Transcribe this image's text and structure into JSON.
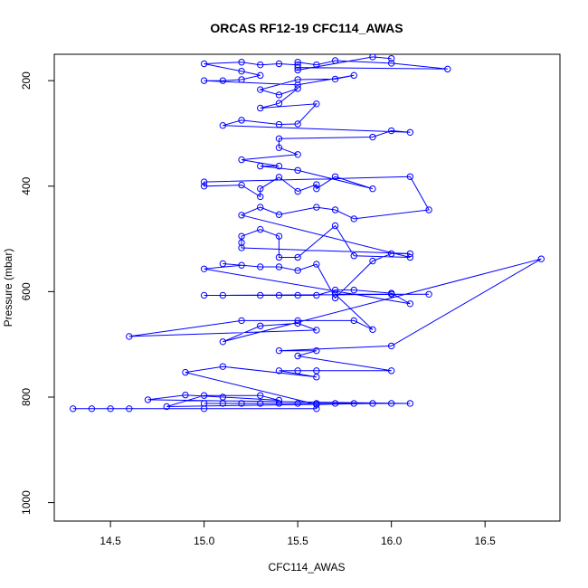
{
  "chart_data": {
    "type": "scatter",
    "title": "ORCAS RF12-19 CFC114_AWAS",
    "xlabel": "CFC114_AWAS",
    "ylabel": "Pressure (mbar)",
    "xlim": [
      14.2,
      16.9
    ],
    "ylim": [
      1035,
      150
    ],
    "y_reversed": true,
    "grid": false,
    "x_ticks": [
      14.5,
      15.0,
      15.5,
      16.0,
      16.5
    ],
    "x_tick_labels": [
      "14.5",
      "15.0",
      "15.5",
      "16.0",
      "16.5"
    ],
    "y_ticks": [
      200,
      400,
      600,
      800,
      1000
    ],
    "y_tick_labels": [
      "200",
      "400",
      "600",
      "800",
      "1000"
    ],
    "series": [
      {
        "style": "lines+points",
        "color": "#0000ff",
        "points": [
          [
            14.3,
            822
          ],
          [
            14.4,
            822
          ],
          [
            14.5,
            822
          ],
          [
            14.6,
            822
          ],
          [
            15.0,
            822
          ],
          [
            15.6,
            822
          ],
          [
            15.6,
            812
          ],
          [
            15.5,
            812
          ],
          [
            15.4,
            812
          ],
          [
            15.3,
            812
          ],
          [
            15.2,
            812
          ],
          [
            15.1,
            812
          ],
          [
            15.0,
            812
          ],
          [
            15.7,
            812
          ],
          [
            15.8,
            812
          ],
          [
            16.0,
            812
          ],
          [
            16.1,
            812
          ],
          [
            14.7,
            805
          ],
          [
            14.9,
            796
          ],
          [
            15.1,
            800
          ],
          [
            15.4,
            806
          ],
          [
            15.3,
            797
          ],
          [
            15.0,
            797
          ],
          [
            14.8,
            818
          ],
          [
            15.9,
            812
          ],
          [
            15.6,
            814
          ],
          [
            14.9,
            753
          ],
          [
            15.1,
            742
          ],
          [
            15.6,
            762
          ],
          [
            15.4,
            750
          ],
          [
            15.5,
            750
          ],
          [
            15.6,
            750
          ],
          [
            16.0,
            750
          ],
          [
            15.5,
            722
          ],
          [
            15.6,
            712
          ],
          [
            15.4,
            712
          ],
          [
            16.0,
            703
          ],
          [
            16.8,
            538
          ],
          [
            15.1,
            695
          ],
          [
            15.3,
            665
          ],
          [
            15.5,
            660
          ],
          [
            15.6,
            673
          ],
          [
            14.6,
            685
          ],
          [
            15.2,
            655
          ],
          [
            15.5,
            655
          ],
          [
            15.8,
            655
          ],
          [
            15.9,
            672
          ],
          [
            15.7,
            605
          ],
          [
            16.0,
            605
          ],
          [
            16.2,
            605
          ],
          [
            15.0,
            607
          ],
          [
            15.1,
            607
          ],
          [
            15.3,
            607
          ],
          [
            15.4,
            607
          ],
          [
            15.5,
            607
          ],
          [
            15.6,
            607
          ],
          [
            15.7,
            597
          ],
          [
            15.8,
            597
          ],
          [
            16.0,
            603
          ],
          [
            16.1,
            623
          ],
          [
            15.0,
            557
          ],
          [
            15.2,
            550
          ],
          [
            15.1,
            547
          ],
          [
            15.3,
            553
          ],
          [
            15.4,
            553
          ],
          [
            15.5,
            560
          ],
          [
            15.6,
            548
          ],
          [
            15.7,
            612
          ],
          [
            15.9,
            542
          ],
          [
            16.0,
            528
          ],
          [
            16.1,
            528
          ],
          [
            15.2,
            517
          ],
          [
            15.2,
            507
          ],
          [
            15.2,
            495
          ],
          [
            15.3,
            482
          ],
          [
            15.4,
            495
          ],
          [
            15.4,
            535
          ],
          [
            15.5,
            535
          ],
          [
            15.7,
            475
          ],
          [
            15.8,
            532
          ],
          [
            16.1,
            535
          ],
          [
            15.2,
            455
          ],
          [
            15.3,
            440
          ],
          [
            15.4,
            454
          ],
          [
            15.6,
            440
          ],
          [
            15.7,
            445
          ],
          [
            15.8,
            462
          ],
          [
            16.2,
            445
          ],
          [
            16.1,
            382
          ],
          [
            15.0,
            392
          ],
          [
            15.0,
            400
          ],
          [
            15.2,
            398
          ],
          [
            15.3,
            420
          ],
          [
            15.3,
            405
          ],
          [
            15.4,
            383
          ],
          [
            15.5,
            410
          ],
          [
            15.6,
            397
          ],
          [
            15.6,
            405
          ],
          [
            15.7,
            382
          ],
          [
            15.9,
            405
          ],
          [
            15.5,
            370
          ],
          [
            15.3,
            362
          ],
          [
            15.4,
            362
          ],
          [
            15.2,
            350
          ],
          [
            15.5,
            340
          ],
          [
            15.4,
            327
          ],
          [
            15.4,
            310
          ],
          [
            15.9,
            307
          ],
          [
            16.0,
            295
          ],
          [
            16.1,
            298
          ],
          [
            15.1,
            285
          ],
          [
            15.2,
            275
          ],
          [
            15.4,
            283
          ],
          [
            15.5,
            282
          ],
          [
            15.6,
            244
          ],
          [
            15.3,
            252
          ],
          [
            15.4,
            243
          ],
          [
            15.5,
            215
          ],
          [
            15.4,
            227
          ],
          [
            15.3,
            217
          ],
          [
            15.5,
            198
          ],
          [
            15.7,
            197
          ],
          [
            15.8,
            190
          ],
          [
            15.5,
            208
          ],
          [
            15.0,
            200
          ],
          [
            15.1,
            200
          ],
          [
            15.2,
            198
          ],
          [
            15.3,
            190
          ],
          [
            15.2,
            182
          ],
          [
            15.0,
            168
          ],
          [
            15.2,
            165
          ],
          [
            15.3,
            170
          ],
          [
            15.4,
            168
          ],
          [
            15.5,
            170
          ],
          [
            15.5,
            165
          ],
          [
            15.6,
            170
          ],
          [
            15.7,
            162
          ],
          [
            16.0,
            167
          ],
          [
            16.3,
            178
          ],
          [
            15.5,
            175
          ],
          [
            15.5,
            180
          ],
          [
            15.9,
            155
          ],
          [
            16.0,
            158
          ]
        ]
      }
    ]
  }
}
